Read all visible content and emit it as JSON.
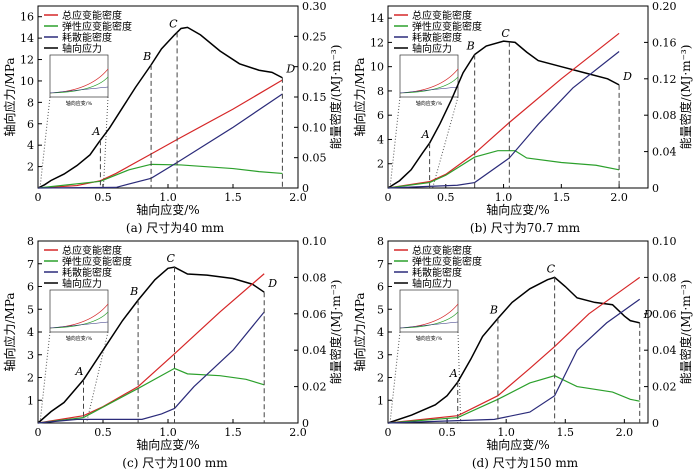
{
  "colors": {
    "total": "#d62728",
    "elastic": "#2ca02c",
    "dissipated": "#2b2b7a",
    "stress": "#000000"
  },
  "chart_data": [
    {
      "type": "line",
      "caption": "(a) 尺寸为40 mm",
      "xlabel": "轴向应变/%",
      "ylabel": "轴向应力/MPa",
      "y2label": "能量密度/(MJ·m⁻³)",
      "xlim": [
        0,
        2.0
      ],
      "xticks": [
        0,
        0.5,
        1.0,
        1.5,
        2.0
      ],
      "ylim": [
        0,
        17
      ],
      "yticks": [
        2,
        4,
        6,
        8,
        10,
        12,
        14,
        16
      ],
      "y2lim": [
        0,
        0.3
      ],
      "y2ticks": [
        0,
        0.05,
        0.1,
        0.15,
        0.2,
        0.25,
        0.3
      ],
      "legend": [
        "总应变能密度",
        "弹性应变能密度",
        "耗散能密度",
        "轴向应力"
      ],
      "legend_position": "top-left",
      "points": [
        {
          "label": "A",
          "x": 0.48
        },
        {
          "label": "B",
          "x": 0.87
        },
        {
          "label": "C",
          "x": 1.07
        },
        {
          "label": "D",
          "x": 1.88
        }
      ],
      "series": [
        {
          "name": "轴向应力",
          "axis": "left",
          "key": "stress",
          "data": [
            [
              0,
              0
            ],
            [
              0.05,
              0.3
            ],
            [
              0.1,
              0.7
            ],
            [
              0.2,
              1.3
            ],
            [
              0.3,
              2.1
            ],
            [
              0.4,
              3.1
            ],
            [
              0.47,
              4.3
            ],
            [
              0.55,
              5.6
            ],
            [
              0.65,
              7.5
            ],
            [
              0.75,
              9.4
            ],
            [
              0.87,
              11.5
            ],
            [
              0.95,
              13
            ],
            [
              1.05,
              14.3
            ],
            [
              1.1,
              14.9
            ],
            [
              1.15,
              15
            ],
            [
              1.25,
              14.3
            ],
            [
              1.4,
              12.8
            ],
            [
              1.55,
              11.6
            ],
            [
              1.7,
              11
            ],
            [
              1.8,
              10.8
            ],
            [
              1.88,
              10.3
            ]
          ]
        },
        {
          "name": "总应变能密度",
          "axis": "right",
          "key": "total",
          "data": [
            [
              0,
              0
            ],
            [
              0.3,
              0.004
            ],
            [
              0.48,
              0.012
            ],
            [
              0.6,
              0.024
            ],
            [
              0.87,
              0.056
            ],
            [
              1.07,
              0.08
            ],
            [
              1.5,
              0.13
            ],
            [
              1.88,
              0.178
            ]
          ]
        },
        {
          "name": "弹性应变能密度",
          "axis": "right",
          "key": "elastic",
          "data": [
            [
              0,
              0
            ],
            [
              0.48,
              0.011
            ],
            [
              0.7,
              0.03
            ],
            [
              0.87,
              0.039
            ],
            [
              1.1,
              0.038
            ],
            [
              1.5,
              0.032
            ],
            [
              1.7,
              0.027
            ],
            [
              1.88,
              0.024
            ]
          ]
        },
        {
          "name": "耗散能密度",
          "axis": "right",
          "key": "dissipated",
          "data": [
            [
              0,
              0
            ],
            [
              0.6,
              0.001
            ],
            [
              0.87,
              0.016
            ],
            [
              1.07,
              0.042
            ],
            [
              1.5,
              0.1
            ],
            [
              1.88,
              0.155
            ]
          ]
        }
      ]
    },
    {
      "type": "line",
      "caption": "(b) 尺寸为70.7 mm",
      "xlabel": "轴向应变/%",
      "ylabel": "轴向应力/MPa",
      "y2label": "能量密度/(MJ·m⁻³)",
      "xlim": [
        0,
        2.25
      ],
      "xticks": [
        0,
        0.5,
        1.0,
        1.5,
        2.0
      ],
      "ylim": [
        0,
        15
      ],
      "yticks": [
        2,
        4,
        6,
        8,
        10,
        12,
        14
      ],
      "y2lim": [
        0,
        0.2
      ],
      "y2ticks": [
        0,
        0.04,
        0.08,
        0.12,
        0.16,
        0.2
      ],
      "legend": [
        "总应变能密度",
        "弹性应变能密度",
        "耗散能密度",
        "轴向应力"
      ],
      "legend_position": "top-left",
      "points": [
        {
          "label": "A",
          "x": 0.36
        },
        {
          "label": "B",
          "x": 0.75
        },
        {
          "label": "C",
          "x": 1.05
        },
        {
          "label": "D",
          "x": 2.0
        }
      ],
      "series": [
        {
          "name": "轴向应力",
          "axis": "left",
          "key": "stress",
          "data": [
            [
              0,
              0
            ],
            [
              0.1,
              0.6
            ],
            [
              0.2,
              1.5
            ],
            [
              0.3,
              2.9
            ],
            [
              0.36,
              3.7
            ],
            [
              0.45,
              5.3
            ],
            [
              0.55,
              7.3
            ],
            [
              0.65,
              9.5
            ],
            [
              0.75,
              11
            ],
            [
              0.85,
              11.7
            ],
            [
              1.0,
              12.1
            ],
            [
              1.1,
              12
            ],
            [
              1.2,
              11.2
            ],
            [
              1.3,
              10.5
            ],
            [
              1.5,
              10
            ],
            [
              1.7,
              9.5
            ],
            [
              1.9,
              9
            ],
            [
              2.0,
              8.5
            ]
          ]
        },
        {
          "name": "总应变能密度",
          "axis": "right",
          "key": "total",
          "data": [
            [
              0,
              0
            ],
            [
              0.36,
              0.007
            ],
            [
              0.5,
              0.015
            ],
            [
              0.75,
              0.038
            ],
            [
              1.05,
              0.072
            ],
            [
              1.5,
              0.12
            ],
            [
              2.0,
              0.17
            ]
          ]
        },
        {
          "name": "弹性应变能密度",
          "axis": "right",
          "key": "elastic",
          "data": [
            [
              0,
              0
            ],
            [
              0.36,
              0.006
            ],
            [
              0.5,
              0.014
            ],
            [
              0.75,
              0.034
            ],
            [
              0.95,
              0.041
            ],
            [
              1.1,
              0.041
            ],
            [
              1.2,
              0.033
            ],
            [
              1.5,
              0.028
            ],
            [
              1.8,
              0.025
            ],
            [
              2.0,
              0.02
            ]
          ]
        },
        {
          "name": "耗散能密度",
          "axis": "right",
          "key": "dissipated",
          "data": [
            [
              0,
              0
            ],
            [
              0.6,
              0.003
            ],
            [
              0.75,
              0.006
            ],
            [
              1.05,
              0.033
            ],
            [
              1.3,
              0.07
            ],
            [
              1.6,
              0.11
            ],
            [
              2.0,
              0.15
            ]
          ]
        }
      ]
    },
    {
      "type": "line",
      "caption": "(c) 尺寸为100 mm",
      "xlabel": "轴向应变/%",
      "ylabel": "轴向应力/MPa",
      "y2label": "能量密度/(MJ·m⁻³)",
      "xlim": [
        0,
        2.0
      ],
      "xticks": [
        0,
        0.5,
        1.0,
        1.5,
        2.0
      ],
      "ylim": [
        0,
        8
      ],
      "yticks": [
        1,
        2,
        3,
        4,
        5,
        6,
        7,
        8
      ],
      "y2lim": [
        0,
        0.1
      ],
      "y2ticks": [
        0,
        0.02,
        0.04,
        0.06,
        0.08,
        0.1
      ],
      "legend": [
        "总应变能密度",
        "弹性应变能密度",
        "耗散能密度",
        "轴向应力"
      ],
      "legend_position": "top-left",
      "points": [
        {
          "label": "A",
          "x": 0.35
        },
        {
          "label": "B",
          "x": 0.77
        },
        {
          "label": "C",
          "x": 1.05
        },
        {
          "label": "D",
          "x": 1.74
        }
      ],
      "series": [
        {
          "name": "轴向应力",
          "axis": "left",
          "key": "stress",
          "data": [
            [
              0,
              0
            ],
            [
              0.1,
              0.5
            ],
            [
              0.2,
              0.9
            ],
            [
              0.35,
              1.9
            ],
            [
              0.5,
              3.2
            ],
            [
              0.65,
              4.5
            ],
            [
              0.77,
              5.4
            ],
            [
              0.9,
              6.3
            ],
            [
              1.0,
              6.8
            ],
            [
              1.05,
              6.85
            ],
            [
              1.15,
              6.55
            ],
            [
              1.3,
              6.5
            ],
            [
              1.5,
              6.35
            ],
            [
              1.65,
              6.1
            ],
            [
              1.74,
              5.75
            ]
          ]
        },
        {
          "name": "总应变能密度",
          "axis": "right",
          "key": "total",
          "data": [
            [
              0,
              0
            ],
            [
              0.35,
              0.004
            ],
            [
              0.5,
              0.009
            ],
            [
              0.77,
              0.02
            ],
            [
              1.05,
              0.038
            ],
            [
              1.4,
              0.061
            ],
            [
              1.74,
              0.082
            ]
          ]
        },
        {
          "name": "弹性应变能密度",
          "axis": "right",
          "key": "elastic",
          "data": [
            [
              0,
              0
            ],
            [
              0.35,
              0.003
            ],
            [
              0.77,
              0.019
            ],
            [
              1.05,
              0.03
            ],
            [
              1.15,
              0.027
            ],
            [
              1.4,
              0.026
            ],
            [
              1.6,
              0.024
            ],
            [
              1.74,
              0.021
            ]
          ]
        },
        {
          "name": "耗散能密度",
          "axis": "right",
          "key": "dissipated",
          "data": [
            [
              0,
              0
            ],
            [
              0.3,
              0.002
            ],
            [
              0.8,
              0.002
            ],
            [
              0.95,
              0.005
            ],
            [
              1.05,
              0.008
            ],
            [
              1.2,
              0.02
            ],
            [
              1.5,
              0.04
            ],
            [
              1.74,
              0.061
            ]
          ]
        }
      ]
    },
    {
      "type": "line",
      "caption": "(d) 尺寸为150 mm",
      "xlabel": "轴向应变/%",
      "ylabel": "轴向应力/MPa",
      "y2label": "能量密度/(MJ·m⁻³)",
      "xlim": [
        0,
        2.2
      ],
      "xticks": [
        0,
        0.5,
        1.0,
        1.5,
        2.0
      ],
      "ylim": [
        0,
        8
      ],
      "yticks": [
        1,
        2,
        3,
        4,
        5,
        6,
        7,
        8
      ],
      "y2lim": [
        0,
        0.1
      ],
      "y2ticks": [
        0,
        0.02,
        0.04,
        0.06,
        0.08,
        0.1
      ],
      "legend": [
        "总应变能密度",
        "弹性应变能密度",
        "耗散能密度",
        "轴向应力"
      ],
      "legend_position": "top-left",
      "points": [
        {
          "label": "A",
          "x": 0.59
        },
        {
          "label": "B",
          "x": 0.93
        },
        {
          "label": "C",
          "x": 1.41
        },
        {
          "label": "D",
          "x": 2.13
        }
      ],
      "series": [
        {
          "name": "轴向应力",
          "axis": "left",
          "key": "stress",
          "data": [
            [
              0,
              0
            ],
            [
              0.2,
              0.35
            ],
            [
              0.4,
              0.8
            ],
            [
              0.5,
              1.2
            ],
            [
              0.59,
              1.8
            ],
            [
              0.7,
              2.8
            ],
            [
              0.8,
              3.8
            ],
            [
              0.93,
              4.6
            ],
            [
              1.05,
              5.3
            ],
            [
              1.2,
              5.9
            ],
            [
              1.35,
              6.3
            ],
            [
              1.41,
              6.4
            ],
            [
              1.5,
              6
            ],
            [
              1.6,
              5.5
            ],
            [
              1.75,
              5.3
            ],
            [
              1.9,
              5.2
            ],
            [
              2.0,
              4.7
            ],
            [
              2.05,
              4.5
            ],
            [
              2.13,
              4.4
            ]
          ]
        },
        {
          "name": "总应变能密度",
          "axis": "right",
          "key": "total",
          "data": [
            [
              0,
              0
            ],
            [
              0.59,
              0.004
            ],
            [
              0.93,
              0.015
            ],
            [
              1.2,
              0.03
            ],
            [
              1.41,
              0.042
            ],
            [
              1.7,
              0.06
            ],
            [
              2.13,
              0.08
            ]
          ]
        },
        {
          "name": "弹性应变能密度",
          "axis": "right",
          "key": "elastic",
          "data": [
            [
              0,
              0
            ],
            [
              0.59,
              0.003
            ],
            [
              0.93,
              0.013
            ],
            [
              1.2,
              0.022
            ],
            [
              1.41,
              0.026
            ],
            [
              1.6,
              0.02
            ],
            [
              1.9,
              0.017
            ],
            [
              2.05,
              0.013
            ],
            [
              2.13,
              0.012
            ]
          ]
        },
        {
          "name": "耗散能密度",
          "axis": "right",
          "key": "dissipated",
          "data": [
            [
              0,
              0
            ],
            [
              0.9,
              0.002
            ],
            [
              1.2,
              0.006
            ],
            [
              1.41,
              0.015
            ],
            [
              1.6,
              0.04
            ],
            [
              1.85,
              0.055
            ],
            [
              2.13,
              0.068
            ]
          ]
        }
      ]
    }
  ]
}
